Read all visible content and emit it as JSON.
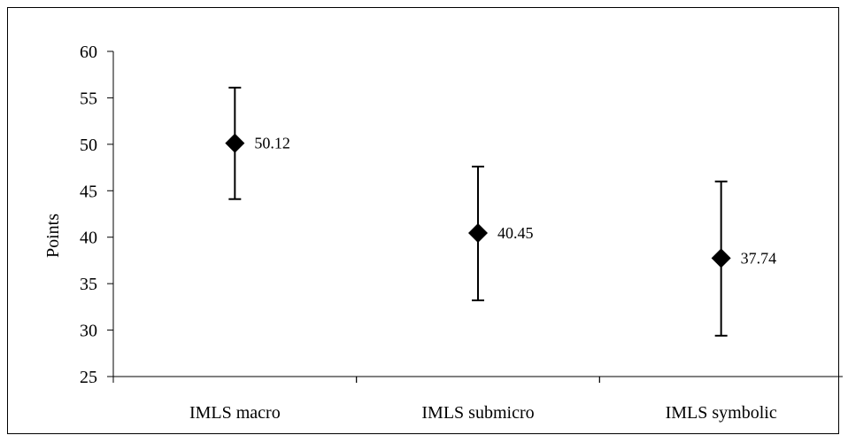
{
  "chart_data": {
    "type": "scatter",
    "title": "",
    "xlabel": "",
    "ylabel": "Points",
    "ylim": [
      25,
      60
    ],
    "yticks": [
      25,
      30,
      35,
      40,
      45,
      50,
      55,
      60
    ],
    "grid": false,
    "legend": "none",
    "marker": "diamond",
    "color": "#000000",
    "categories": [
      "IMLS macro",
      "IMLS submicro",
      "IMLS symbolic"
    ],
    "series": [
      {
        "values": [
          50.12,
          40.45,
          37.74
        ],
        "labels": [
          "50.12",
          "40.45",
          "37.74"
        ],
        "error_low": [
          44.1,
          33.2,
          29.4
        ],
        "error_high": [
          56.1,
          47.6,
          46.0
        ]
      }
    ]
  }
}
